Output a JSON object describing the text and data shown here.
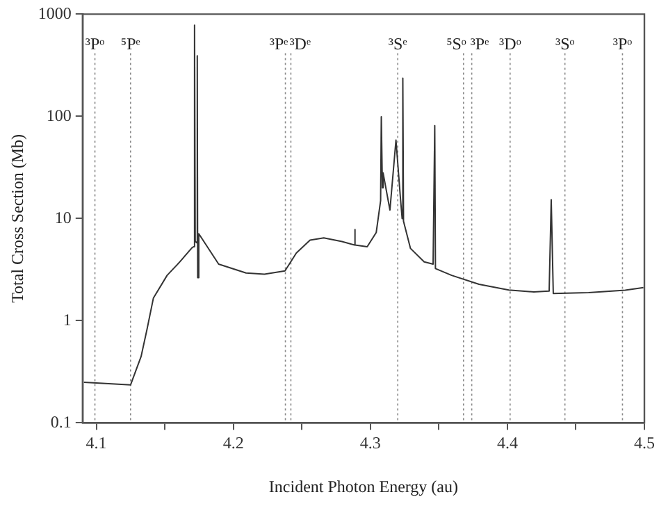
{
  "chart_data": {
    "type": "line",
    "xlabel": "Incident Photon Energy (au)",
    "ylabel": "Total Cross Section (Mb)",
    "xlim": [
      4.09,
      4.5
    ],
    "ylim": [
      0.1,
      1000
    ],
    "log": "y",
    "grid": false,
    "legend": false,
    "marker": "none",
    "line_style": "solid",
    "xticks": [
      4.1,
      {
        "value": 4.15,
        "label": null
      },
      4.2,
      {
        "value": 4.25,
        "label": null
      },
      4.3,
      {
        "value": 4.35,
        "label": null
      },
      4.4,
      {
        "value": 4.45,
        "label": null
      },
      4.5
    ],
    "yticks": [
      0.1,
      1,
      10,
      100,
      1000
    ],
    "ref_lines": [
      {
        "axis": "x",
        "value": 4.099,
        "label": "³Pᵒ",
        "color": "#888888",
        "line_style": "dotted"
      },
      {
        "axis": "x",
        "value": 4.125,
        "label": "⁵Pᵉ",
        "color": "#888888",
        "line_style": "dotted"
      },
      {
        "axis": "x",
        "value": 4.238,
        "label": "³Pᵉ",
        "color": "#888888",
        "line_style": "dotted"
      },
      {
        "axis": "x",
        "value": 4.242,
        "label": "³Dᵉ",
        "color": "#888888",
        "line_style": "dotted"
      },
      {
        "axis": "x",
        "value": 4.32,
        "label": "³Sᵉ",
        "color": "#888888",
        "line_style": "dotted"
      },
      {
        "axis": "x",
        "value": 4.368,
        "label": "⁵Sᵒ",
        "color": "#888888",
        "line_style": "dotted"
      },
      {
        "axis": "x",
        "value": 4.374,
        "label": "³Pᵉ",
        "color": "#888888",
        "line_style": "dotted"
      },
      {
        "axis": "x",
        "value": 4.402,
        "label": "³Dᵒ",
        "color": "#888888",
        "line_style": "dotted"
      },
      {
        "axis": "x",
        "value": 4.442,
        "label": "³Sᵒ",
        "color": "#888888",
        "line_style": "dotted"
      },
      {
        "axis": "x",
        "value": 4.484,
        "label": "³Pᵒ",
        "color": "#888888",
        "line_style": "dotted"
      }
    ],
    "series": [
      {
        "color": "#333333",
        "x": [
          4.091,
          4.125,
          4.1327,
          4.137,
          4.1417,
          4.1517,
          4.161,
          4.17,
          4.1712,
          4.1717,
          4.1722,
          4.1732,
          4.1737,
          4.174,
          4.1748,
          4.1893,
          4.2093,
          4.2227,
          4.2377,
          4.246,
          4.256,
          4.266,
          4.2793,
          4.2885,
          4.2887,
          4.2889,
          4.2977,
          4.3043,
          4.3075,
          4.308,
          4.3088,
          4.3093,
          4.3143,
          4.3187,
          4.322,
          4.3232,
          4.3237,
          4.3242,
          4.3293,
          4.3393,
          4.3458,
          4.347,
          4.3475,
          4.3593,
          4.3793,
          4.401,
          4.4193,
          4.4305,
          4.432,
          4.4335,
          4.4593,
          4.486,
          4.4993
        ],
        "values": [
          0.25,
          0.235,
          0.446,
          0.82,
          1.67,
          2.78,
          3.77,
          5.2,
          5.3,
          780,
          6,
          5.8,
          392,
          2.64,
          7.1,
          3.58,
          2.93,
          2.85,
          3.07,
          4.6,
          6.14,
          6.46,
          5.95,
          5.5,
          7.8,
          5.5,
          5.3,
          7.3,
          15,
          99,
          20,
          28,
          12.1,
          58.6,
          15.6,
          10,
          236,
          9.4,
          5.1,
          3.77,
          3.58,
          81,
          3.24,
          2.78,
          2.27,
          2.0,
          1.91,
          1.95,
          15.3,
          1.85,
          1.88,
          1.99,
          2.11
        ]
      }
    ]
  }
}
